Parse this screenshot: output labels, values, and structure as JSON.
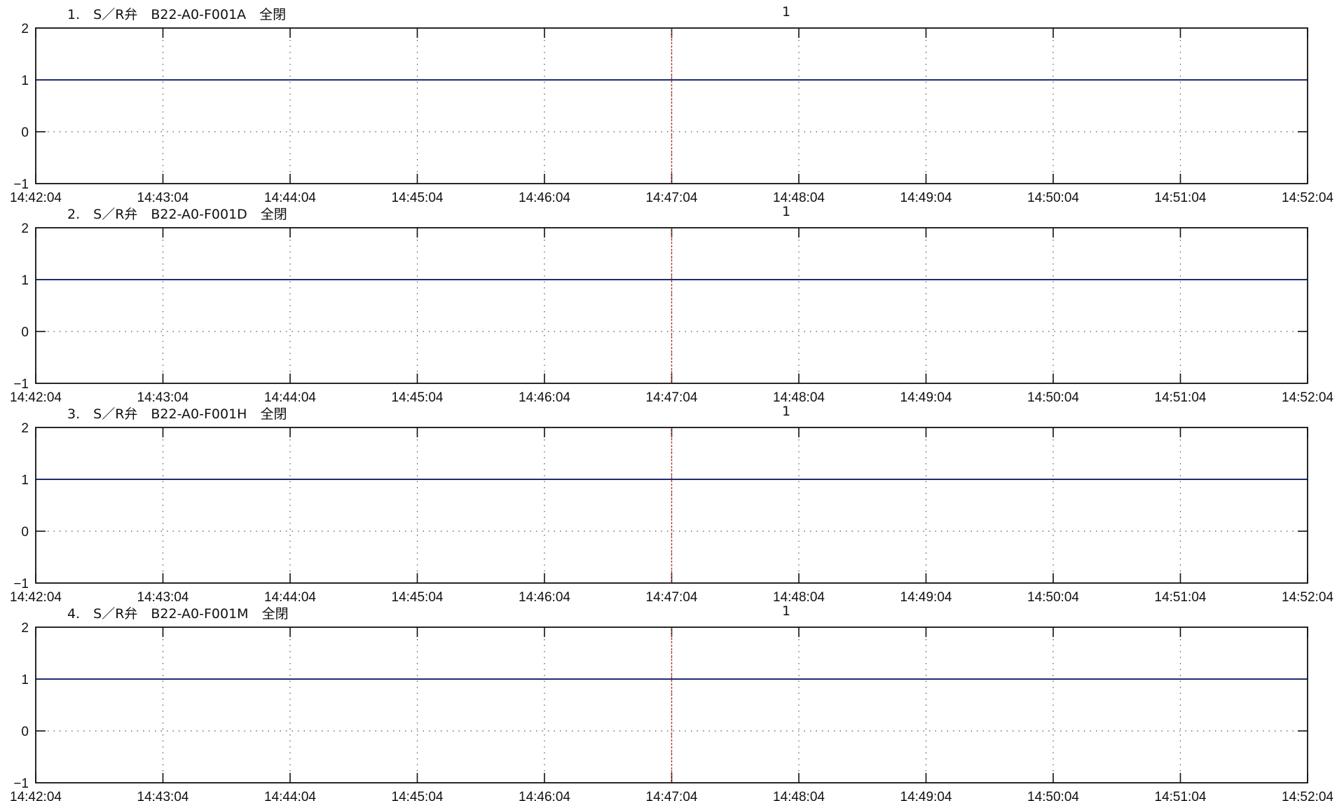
{
  "chart_data": [
    {
      "type": "line",
      "title": "1.　S／R弁　B22-A0-F001A　全閉",
      "marker_label": "1",
      "x_ticks": [
        "14:42:04",
        "14:43:04",
        "14:44:04",
        "14:45:04",
        "14:46:04",
        "14:47:04",
        "14:48:04",
        "14:49:04",
        "14:50:04",
        "14:51:04",
        "14:52:04"
      ],
      "xlim": [
        "14:42:04",
        "14:52:04"
      ],
      "ylim": [
        -1,
        2
      ],
      "y_ticks": [
        "2",
        "1",
        "0",
        "−1"
      ],
      "y_tick_values": [
        2,
        1,
        0,
        -1
      ],
      "cursor_time": "14:47:04",
      "grid": true,
      "series": [
        {
          "x": [
            "14:42:04",
            "14:52:04"
          ],
          "y": [
            1,
            1
          ]
        }
      ],
      "colors": {
        "series": "#1e2d6e",
        "cursor": "#b43a2e",
        "grid": "#555555",
        "axis": "#111111"
      }
    },
    {
      "type": "line",
      "title": "2.　S／R弁　B22-A0-F001D　全閉",
      "marker_label": "1",
      "x_ticks": [
        "14:42:04",
        "14:43:04",
        "14:44:04",
        "14:45:04",
        "14:46:04",
        "14:47:04",
        "14:48:04",
        "14:49:04",
        "14:50:04",
        "14:51:04",
        "14:52:04"
      ],
      "xlim": [
        "14:42:04",
        "14:52:04"
      ],
      "ylim": [
        -1,
        2
      ],
      "y_ticks": [
        "2",
        "1",
        "0",
        "−1"
      ],
      "y_tick_values": [
        2,
        1,
        0,
        -1
      ],
      "cursor_time": "14:47:04",
      "grid": true,
      "series": [
        {
          "x": [
            "14:42:04",
            "14:52:04"
          ],
          "y": [
            1,
            1
          ]
        }
      ],
      "colors": {
        "series": "#1e2d6e",
        "cursor": "#b43a2e",
        "grid": "#555555",
        "axis": "#111111"
      }
    },
    {
      "type": "line",
      "title": "3.　S／R弁　B22-A0-F001H　全閉",
      "marker_label": "1",
      "x_ticks": [
        "14:42:04",
        "14:43:04",
        "14:44:04",
        "14:45:04",
        "14:46:04",
        "14:47:04",
        "14:48:04",
        "14:49:04",
        "14:50:04",
        "14:51:04",
        "14:52:04"
      ],
      "xlim": [
        "14:42:04",
        "14:52:04"
      ],
      "ylim": [
        -1,
        2
      ],
      "y_ticks": [
        "2",
        "1",
        "0",
        "−1"
      ],
      "y_tick_values": [
        2,
        1,
        0,
        -1
      ],
      "cursor_time": "14:47:04",
      "grid": true,
      "series": [
        {
          "x": [
            "14:42:04",
            "14:52:04"
          ],
          "y": [
            1,
            1
          ]
        }
      ],
      "colors": {
        "series": "#1e2d6e",
        "cursor": "#b43a2e",
        "grid": "#555555",
        "axis": "#111111"
      }
    },
    {
      "type": "line",
      "title": "4.　S／R弁　B22-A0-F001M　全閉",
      "marker_label": "1",
      "x_ticks": [
        "14:42:04",
        "14:43:04",
        "14:44:04",
        "14:45:04",
        "14:46:04",
        "14:47:04",
        "14:48:04",
        "14:49:04",
        "14:50:04",
        "14:51:04",
        "14:52:04"
      ],
      "xlim": [
        "14:42:04",
        "14:52:04"
      ],
      "ylim": [
        -1,
        2
      ],
      "y_ticks": [
        "2",
        "1",
        "0",
        "−1"
      ],
      "y_tick_values": [
        2,
        1,
        0,
        -1
      ],
      "cursor_time": "14:47:04",
      "grid": true,
      "series": [
        {
          "x": [
            "14:42:04",
            "14:52:04"
          ],
          "y": [
            1,
            1
          ]
        }
      ],
      "colors": {
        "series": "#1e2d6e",
        "cursor": "#b43a2e",
        "grid": "#555555",
        "axis": "#111111"
      }
    }
  ]
}
